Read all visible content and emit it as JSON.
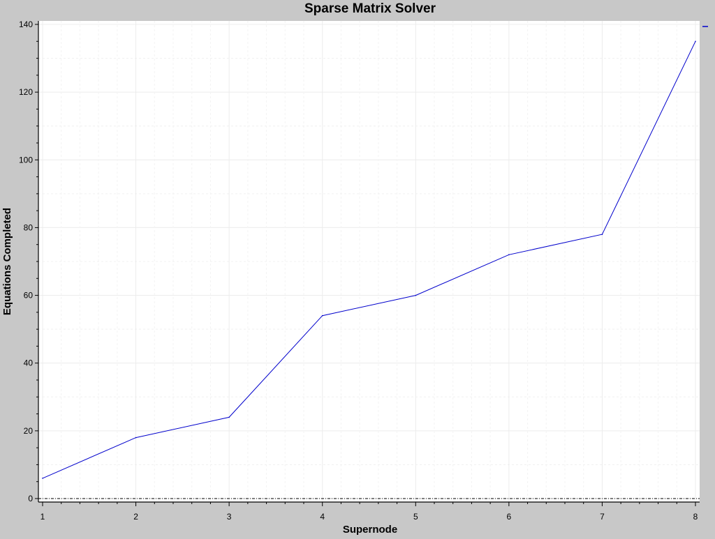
{
  "chart_data": {
    "type": "line",
    "title": "Sparse Matrix Solver",
    "xlabel": "Supernode",
    "ylabel": "Equations Completed",
    "xlim": [
      1,
      8
    ],
    "ylim": [
      0,
      140
    ],
    "x_ticks": [
      "1",
      "2",
      "3",
      "4",
      "5",
      "6",
      "7",
      "8"
    ],
    "y_ticks": [
      "0",
      "20",
      "40",
      "60",
      "80",
      "100",
      "120",
      "140"
    ],
    "grid": true,
    "legend_placement": "top-right",
    "series": [
      {
        "color": "#0000cc",
        "x": [
          1,
          2,
          3,
          4,
          5,
          6,
          7,
          8
        ],
        "values": [
          6,
          18,
          24,
          54,
          60,
          72,
          78,
          135
        ]
      }
    ],
    "colors": {
      "background": "#c8c8c8",
      "plot_background": "#ffffff",
      "line": "#0000cc"
    }
  }
}
